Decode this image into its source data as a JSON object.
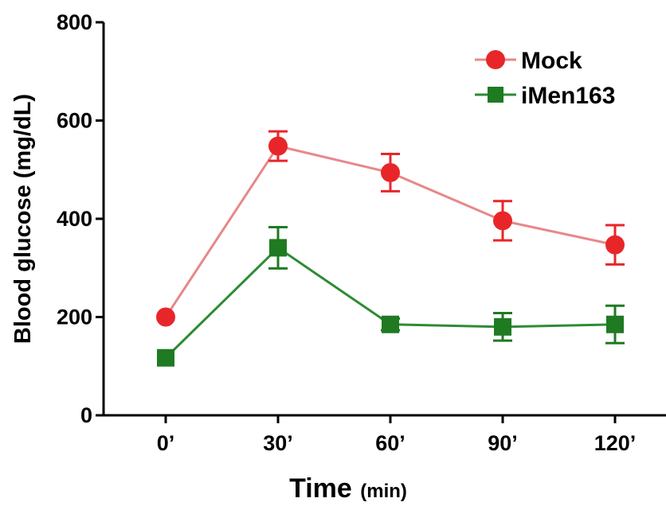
{
  "chart_data": {
    "type": "line",
    "categories": [
      "0’",
      "30’",
      "60’",
      "90’",
      "120’"
    ],
    "series": [
      {
        "name": "Mock",
        "color": "#e8262a",
        "line_color": "#e7888a",
        "marker": "circle",
        "values": [
          200,
          548,
          494,
          396,
          347
        ],
        "errors": [
          0,
          30,
          38,
          40,
          40
        ]
      },
      {
        "name": "iMen163",
        "color": "#1f7a22",
        "line_color": "#2e8b34",
        "marker": "square",
        "values": [
          117,
          341,
          185,
          180,
          185
        ],
        "errors": [
          0,
          42,
          12,
          28,
          38
        ]
      }
    ],
    "ylabel": "Blood glucose (mg/dL)",
    "xlabel": "Time",
    "xlabel_unit": "(min)",
    "ylim": [
      0,
      800
    ],
    "yticks": [
      0,
      200,
      400,
      600,
      800
    ],
    "legend": "top-right",
    "grid": false
  }
}
